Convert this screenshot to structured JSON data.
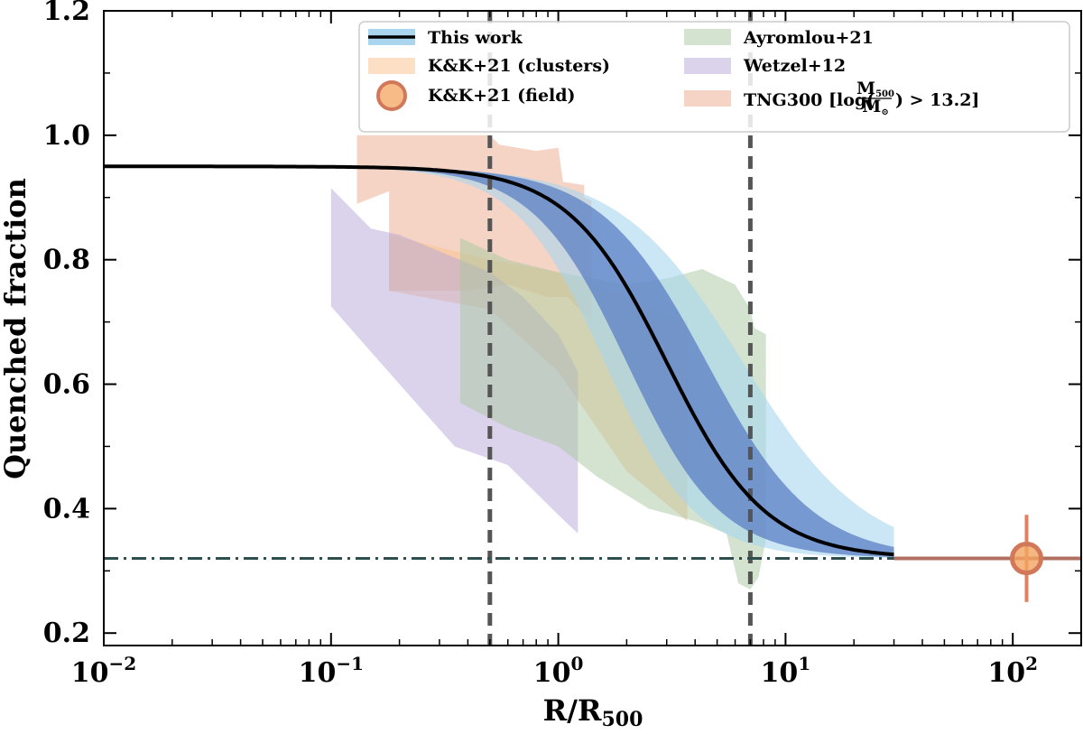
{
  "chart_data": {
    "type": "area",
    "xscale": "log",
    "xlim": [
      0.01,
      200
    ],
    "ylim": [
      0.18,
      1.2
    ],
    "xlabel": "R/R",
    "xlabel_sub": "500",
    "ylabel": "Quenched fraction",
    "x_ticks": [
      {
        "value": 0.01,
        "base": "10",
        "exp": "−2"
      },
      {
        "value": 0.1,
        "base": "10",
        "exp": "−1"
      },
      {
        "value": 1,
        "base": "10",
        "exp": "0"
      },
      {
        "value": 10,
        "base": "10",
        "exp": "1"
      },
      {
        "value": 100,
        "base": "10",
        "exp": "2"
      }
    ],
    "y_ticks": [
      {
        "value": 0.2,
        "label": "0.2"
      },
      {
        "value": 0.4,
        "label": "0.4"
      },
      {
        "value": 0.6,
        "label": "0.6"
      },
      {
        "value": 0.8,
        "label": "0.8"
      },
      {
        "value": 1.0,
        "label": "1.0"
      },
      {
        "value": 1.2,
        "label": "1.2"
      }
    ],
    "model": {
      "name": "This work",
      "f_in": 0.95,
      "f_field": 0.32,
      "x_half": 3.0,
      "slope": 2.0,
      "x_max": 30
    },
    "vlines": [
      0.5,
      7.0
    ],
    "hline": 0.32,
    "field_point": {
      "name": "K&K+21 (field)",
      "x": 115,
      "y": 0.32,
      "yerr_low": 0.25,
      "yerr_high": 0.39
    },
    "tng_field_line": {
      "x_start": 30,
      "x_end": 200,
      "y": 0.32
    },
    "bands": [
      {
        "name": "TNG300",
        "color": "#e8a080",
        "opacity": 0.45,
        "upper": [
          [
            0.13,
            1.0
          ],
          [
            0.5,
            1.0
          ],
          [
            0.55,
            0.985
          ],
          [
            0.8,
            0.975
          ],
          [
            1.0,
            0.98
          ],
          [
            1.05,
            0.925
          ],
          [
            1.3,
            0.92
          ],
          [
            1.3,
            0.9
          ],
          [
            1.4,
            0.895
          ],
          [
            1.4,
            0.7
          ]
        ],
        "lower": [
          [
            0.13,
            0.89
          ],
          [
            0.18,
            0.91
          ],
          [
            0.18,
            0.75
          ],
          [
            0.4,
            0.75
          ],
          [
            0.6,
            0.76
          ],
          [
            0.9,
            0.74
          ],
          [
            1.1,
            0.74
          ],
          [
            1.4,
            0.7
          ]
        ]
      },
      {
        "name": "K&K+21 (clusters)",
        "color": "#f9c08a",
        "opacity": 0.5,
        "upper": [
          [
            0.18,
            0.84
          ],
          [
            0.5,
            0.8
          ],
          [
            1.0,
            0.78
          ],
          [
            2.0,
            0.74
          ],
          [
            3.7,
            0.7
          ]
        ],
        "lower": [
          [
            0.18,
            0.75
          ],
          [
            0.5,
            0.72
          ],
          [
            1.0,
            0.62
          ],
          [
            2.0,
            0.46
          ],
          [
            3.7,
            0.38
          ]
        ]
      },
      {
        "name": "Wetzel+12",
        "color": "#b8a8d8",
        "opacity": 0.5,
        "upper": [
          [
            0.1,
            0.915
          ],
          [
            0.15,
            0.85
          ],
          [
            0.2,
            0.84
          ],
          [
            0.5,
            0.78
          ],
          [
            0.7,
            0.74
          ],
          [
            1.0,
            0.68
          ],
          [
            1.22,
            0.62
          ]
        ],
        "lower": [
          [
            0.1,
            0.725
          ],
          [
            0.2,
            0.6
          ],
          [
            0.35,
            0.5
          ],
          [
            0.6,
            0.47
          ],
          [
            1.0,
            0.39
          ],
          [
            1.22,
            0.36
          ]
        ]
      },
      {
        "name": "Ayromlou+21",
        "color": "#a8c8a0",
        "opacity": 0.5,
        "upper": [
          [
            0.37,
            0.835
          ],
          [
            0.6,
            0.8
          ],
          [
            1.0,
            0.78
          ],
          [
            2.0,
            0.76
          ],
          [
            3.0,
            0.77
          ],
          [
            4.3,
            0.785
          ],
          [
            6.0,
            0.76
          ],
          [
            7.0,
            0.72
          ],
          [
            7.3,
            0.69
          ],
          [
            8.2,
            0.68
          ],
          [
            8.2,
            0.35
          ]
        ],
        "lower": [
          [
            0.37,
            0.57
          ],
          [
            0.6,
            0.53
          ],
          [
            1.0,
            0.5
          ],
          [
            1.5,
            0.45
          ],
          [
            2.5,
            0.4
          ],
          [
            4.0,
            0.38
          ],
          [
            5.5,
            0.36
          ],
          [
            6.2,
            0.28
          ],
          [
            7.0,
            0.27
          ],
          [
            7.6,
            0.29
          ],
          [
            8.2,
            0.35
          ]
        ]
      }
    ],
    "legend": [
      {
        "name": "This work",
        "kind": "line"
      },
      {
        "name": "K&K+21 (clusters)",
        "kind": "patch",
        "color": "#f9c08a"
      },
      {
        "name": "K&K+21 (field)",
        "kind": "marker"
      },
      {
        "name": "Ayromlou+21",
        "kind": "patch",
        "color": "#a8c8a0"
      },
      {
        "name": "Wetzel+12",
        "kind": "patch",
        "color": "#b8a8d8"
      },
      {
        "name": "TNG300 [log(",
        "name_suffix": ") > 13.2]",
        "frac_num": "M",
        "frac_num_sub": "500",
        "frac_den": "M",
        "frac_den_sub": "⊙",
        "kind": "patch",
        "color": "#e8a080"
      }
    ],
    "colors": {
      "model_line": "#000000",
      "inner_band": "#5b7fc4",
      "outer_band": "#a9d6ee",
      "vline": "#555555",
      "hline": "#2f4f4f",
      "field_marker": "#f4a460",
      "field_edge": "#d2785a",
      "errbar": "#e08060"
    }
  }
}
